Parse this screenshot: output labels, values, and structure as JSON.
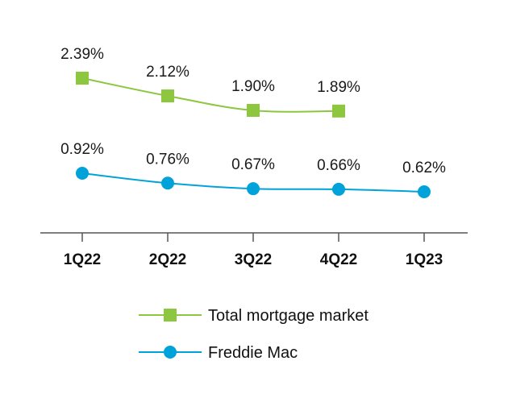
{
  "chart_data": {
    "type": "line",
    "title": "",
    "xlabel": "",
    "ylabel": "",
    "categories": [
      "1Q22",
      "2Q22",
      "3Q22",
      "4Q22",
      "1Q23"
    ],
    "series": [
      {
        "name": "Total mortgage market",
        "values": [
          2.39,
          2.12,
          1.9,
          1.89,
          null
        ],
        "labels": [
          "2.39%",
          "2.12%",
          "1.90%",
          "1.89%",
          ""
        ],
        "color": "#8dc63f",
        "marker": "square"
      },
      {
        "name": "Freddie Mac",
        "values": [
          0.92,
          0.76,
          0.67,
          0.66,
          0.62
        ],
        "labels": [
          "0.92%",
          "0.76%",
          "0.67%",
          "0.66%",
          "0.62%"
        ],
        "color": "#00a3d9",
        "marker": "circle"
      }
    ],
    "legend_position": "bottom",
    "grid": false,
    "axis_color": "#555555"
  }
}
